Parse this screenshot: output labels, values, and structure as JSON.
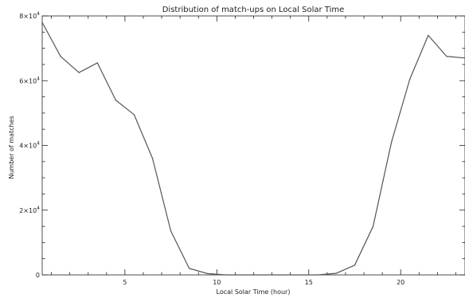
{
  "chart_data": {
    "type": "line",
    "title": "Distribution of match-ups on Local Solar Time",
    "xlabel": "Local Solar Time (hour)",
    "ylabel": "Number of matches",
    "xlim": [
      0.5,
      23.5
    ],
    "ylim": [
      0,
      80000
    ],
    "x_ticks": [
      {
        "value": 5,
        "label": "5"
      },
      {
        "value": 10,
        "label": "10"
      },
      {
        "value": 15,
        "label": "15"
      },
      {
        "value": 20,
        "label": "20"
      }
    ],
    "y_ticks": [
      {
        "value": 0,
        "mantissa": "0",
        "exponent": ""
      },
      {
        "value": 20000,
        "mantissa": "2×10",
        "exponent": "4"
      },
      {
        "value": 40000,
        "mantissa": "4×10",
        "exponent": "4"
      },
      {
        "value": 60000,
        "mantissa": "6×10",
        "exponent": "4"
      },
      {
        "value": 80000,
        "mantissa": "8×10",
        "exponent": "4"
      }
    ],
    "grid": false,
    "legend": "none",
    "series": [
      {
        "x": [
          0.5,
          1.5,
          2.5,
          3.5,
          4.5,
          5.5,
          6.5,
          7.5,
          8.5,
          9.5,
          10.5,
          11.5,
          12.5,
          13.5,
          14.5,
          15.5,
          16.5,
          17.5,
          18.5,
          19.5,
          20.5,
          21.5,
          22.5,
          23.5
        ],
        "y": [
          78000,
          67500,
          62500,
          65500,
          54000,
          49500,
          36000,
          13500,
          2000,
          400,
          0,
          0,
          0,
          0,
          0,
          0,
          500,
          3000,
          15000,
          41000,
          60500,
          74000,
          67500,
          67000
        ],
        "color": "#555555"
      }
    ]
  }
}
